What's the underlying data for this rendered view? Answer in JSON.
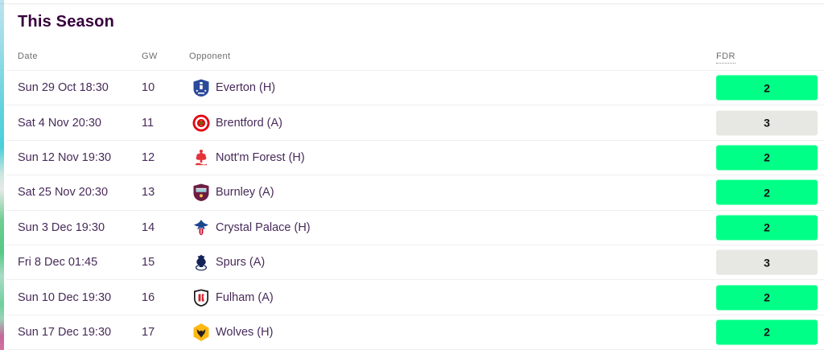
{
  "page": {
    "title": "This Season"
  },
  "table": {
    "headers": {
      "date": "Date",
      "gw": "GW",
      "opponent": "Opponent",
      "fdr": "FDR"
    },
    "rows": [
      {
        "date": "Sun 29 Oct 18:30",
        "gw": "10",
        "opponent": "Everton (H)",
        "badge_icon": "everton-badge-icon",
        "fdr": "2"
      },
      {
        "date": "Sat 4 Nov 20:30",
        "gw": "11",
        "opponent": "Brentford (A)",
        "badge_icon": "brentford-badge-icon",
        "fdr": "3"
      },
      {
        "date": "Sun 12 Nov 19:30",
        "gw": "12",
        "opponent": "Nott'm Forest (H)",
        "badge_icon": "nottm-forest-badge-icon",
        "fdr": "2"
      },
      {
        "date": "Sat 25 Nov 20:30",
        "gw": "13",
        "opponent": "Burnley (A)",
        "badge_icon": "burnley-badge-icon",
        "fdr": "2"
      },
      {
        "date": "Sun 3 Dec 19:30",
        "gw": "14",
        "opponent": "Crystal Palace (H)",
        "badge_icon": "crystal-palace-badge-icon",
        "fdr": "2"
      },
      {
        "date": "Fri 8 Dec 01:45",
        "gw": "15",
        "opponent": "Spurs (A)",
        "badge_icon": "spurs-badge-icon",
        "fdr": "3"
      },
      {
        "date": "Sun 10 Dec 19:30",
        "gw": "16",
        "opponent": "Fulham (A)",
        "badge_icon": "fulham-badge-icon",
        "fdr": "2"
      },
      {
        "date": "Sun 17 Dec 19:30",
        "gw": "17",
        "opponent": "Wolves (H)",
        "badge_icon": "wolves-badge-icon",
        "fdr": "2"
      }
    ]
  },
  "colors": {
    "title_text": "#37003c",
    "row_text": "#472a59",
    "header_text": "#6d6d6d",
    "divider": "#efefef",
    "fdr_2_bg": "#00ff87",
    "fdr_3_bg": "#e7e7e3",
    "fdr_text": "#111111"
  }
}
